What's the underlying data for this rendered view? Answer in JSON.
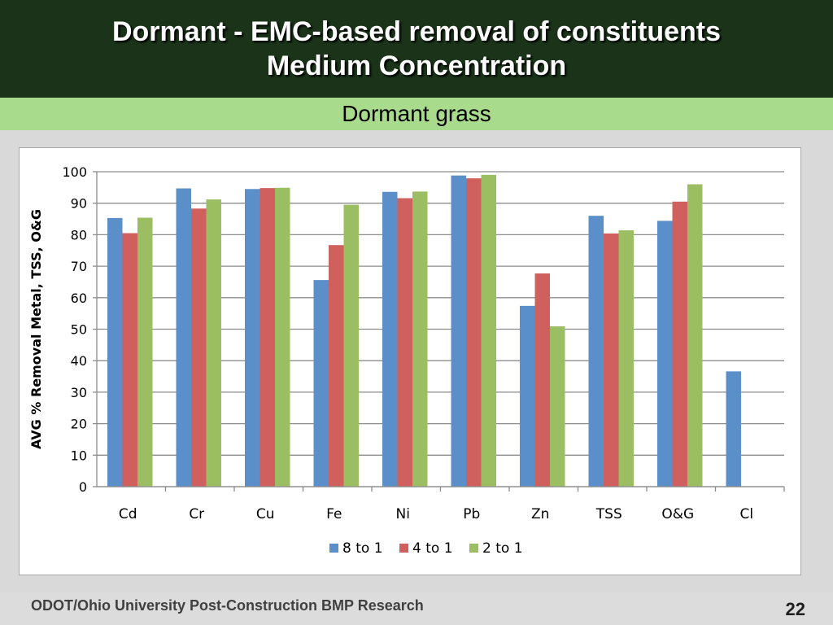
{
  "slide": {
    "title_line1": "Dormant - EMC-based removal of constituents",
    "title_line2": "Medium Concentration",
    "subtitle": "Dormant grass",
    "footer": "ODOT/Ohio University Post-Construction BMP Research",
    "page_number": "22"
  },
  "colors": {
    "title_bg": "#1a3319",
    "subtitle_bg": "#a8dc8c",
    "series": [
      "#5b8fc9",
      "#d0605e",
      "#9bbe63"
    ]
  },
  "chart_data": {
    "type": "bar",
    "title": "",
    "xlabel": "",
    "ylabel": "AVG % Removal Metal, TSS, O&G",
    "ylim": [
      0,
      100
    ],
    "yticks": [
      0,
      10,
      20,
      30,
      40,
      50,
      60,
      70,
      80,
      90,
      100
    ],
    "grid": true,
    "legend_position": "bottom",
    "categories": [
      "Cd",
      "Cr",
      "Cu",
      "Fe",
      "Ni",
      "Pb",
      "Zn",
      "TSS",
      "O&G",
      "Cl"
    ],
    "series": [
      {
        "name": "8 to 1",
        "values": [
          85.3,
          94.7,
          94.5,
          65.6,
          93.6,
          98.8,
          57.4,
          86.0,
          84.4,
          36.6
        ]
      },
      {
        "name": "4 to 1",
        "values": [
          80.5,
          88.3,
          94.8,
          76.7,
          91.6,
          97.9,
          67.7,
          80.4,
          90.5,
          null
        ]
      },
      {
        "name": "2 to 1",
        "values": [
          85.4,
          91.2,
          94.9,
          89.5,
          93.7,
          99.0,
          50.9,
          81.4,
          96.0,
          null
        ]
      }
    ]
  }
}
